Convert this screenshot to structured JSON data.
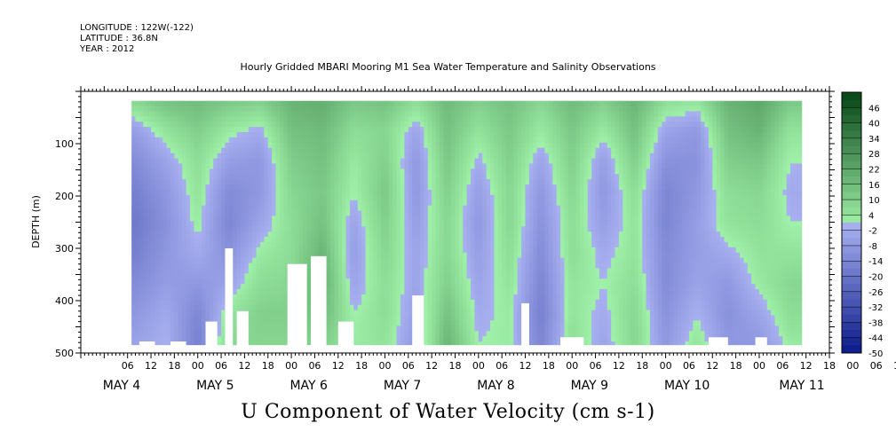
{
  "header": {
    "longitude": "LONGITUDE : 122W(-122)",
    "latitude": "LATITUDE : 36.8N",
    "year": "YEAR : 2012"
  },
  "title": "Hourly Gridded MBARI Mooring M1 Sea Water Temperature and Salinity Observations",
  "bottom_title": "U Component of Water Velocity (cm s-1)",
  "colors": {
    "negative_strong": "#0a1a8a",
    "negative_light": "#a8b0f0",
    "positive_light": "#9ff0a8",
    "positive_strong": "#0a4a1a"
  },
  "chart_data": {
    "type": "heatmap",
    "ylabel": "DEPTH (m)",
    "xlabel": "",
    "ylim": [
      500,
      0
    ],
    "y_ticks": [
      100,
      200,
      300,
      400,
      500
    ],
    "x_ticks": [
      "06",
      "12",
      "18",
      "00",
      "06",
      "12",
      "18",
      "00",
      "06",
      "12",
      "18",
      "00",
      "06",
      "12",
      "18",
      "00",
      "06",
      "12",
      "18",
      "00",
      "06",
      "12",
      "18",
      "00",
      "06",
      "12",
      "18",
      "00",
      "06",
      "12",
      "18",
      "00",
      "06",
      "12",
      "18",
      "00",
      "06"
    ],
    "months": [
      "MAY 4",
      "MAY 5",
      "MAY 6",
      "MAY 7",
      "MAY 8",
      "MAY 9",
      "MAY 10",
      "MAY 11"
    ],
    "colorbar_labels": [
      "46",
      "40",
      "34",
      "28",
      "22",
      "16",
      "10",
      "4",
      "-2",
      "-8",
      "-14",
      "-20",
      "-26",
      "-32",
      "-38",
      "-44",
      "-50"
    ],
    "colorbar_range": [
      -50,
      52
    ],
    "data_start_hour": 13,
    "data_end_hour": 185,
    "depth_range": [
      18,
      485
    ],
    "columns": [
      {
        "hour": 14,
        "values": [
          8,
          -6,
          -12,
          -16,
          -18,
          -16,
          -12,
          -8,
          -4
        ]
      },
      {
        "hour": 22,
        "values": [
          14,
          4,
          -4,
          -8,
          -10,
          -8,
          -6,
          -2,
          0
        ]
      },
      {
        "hour": 30,
        "values": [
          16,
          10,
          6,
          4,
          2,
          -2,
          -8,
          -14,
          -16
        ]
      },
      {
        "hour": 38,
        "values": [
          12,
          2,
          -6,
          -12,
          -14,
          -10,
          -4,
          4,
          8
        ]
      },
      {
        "hour": 46,
        "values": [
          10,
          -2,
          -8,
          -8,
          -4,
          2,
          6,
          10,
          8
        ]
      },
      {
        "hour": 54,
        "values": [
          18,
          14,
          10,
          8,
          6,
          6,
          8,
          10,
          8
        ]
      },
      {
        "hour": 62,
        "values": [
          20,
          16,
          14,
          12,
          14,
          18,
          20,
          16,
          10
        ]
      },
      {
        "hour": 70,
        "values": [
          12,
          6,
          2,
          0,
          -4,
          -6,
          -4,
          0,
          2
        ]
      },
      {
        "hour": 78,
        "values": [
          14,
          8,
          10,
          12,
          10,
          8,
          6,
          6,
          4
        ]
      },
      {
        "hour": 86,
        "values": [
          6,
          -4,
          -8,
          -8,
          -6,
          -4,
          -4,
          -6,
          -8
        ]
      },
      {
        "hour": 94,
        "values": [
          16,
          14,
          12,
          10,
          8,
          8,
          10,
          14,
          18
        ]
      },
      {
        "hour": 102,
        "values": [
          10,
          4,
          -2,
          -6,
          -8,
          -6,
          -4,
          -2,
          0
        ]
      },
      {
        "hour": 110,
        "values": [
          14,
          12,
          10,
          8,
          8,
          6,
          4,
          2,
          2
        ]
      },
      {
        "hour": 118,
        "values": [
          8,
          2,
          -4,
          -8,
          -10,
          -12,
          -14,
          -16,
          -14
        ]
      },
      {
        "hour": 126,
        "values": [
          16,
          12,
          10,
          8,
          6,
          6,
          4,
          4,
          6
        ]
      },
      {
        "hour": 134,
        "values": [
          10,
          2,
          -6,
          -8,
          -6,
          -2,
          0,
          -2,
          -4
        ]
      },
      {
        "hour": 142,
        "values": [
          18,
          14,
          10,
          6,
          4,
          4,
          6,
          8,
          8
        ]
      },
      {
        "hour": 150,
        "values": [
          6,
          -4,
          -10,
          -14,
          -14,
          -12,
          -12,
          -10,
          -8
        ]
      },
      {
        "hour": 158,
        "values": [
          4,
          -8,
          -10,
          -8,
          -6,
          -6,
          -4,
          0,
          4
        ]
      },
      {
        "hour": 166,
        "values": [
          18,
          14,
          10,
          6,
          4,
          -2,
          -8,
          -10,
          -8
        ]
      },
      {
        "hour": 174,
        "values": [
          22,
          18,
          12,
          8,
          6,
          4,
          2,
          -4,
          -8
        ]
      },
      {
        "hour": 182,
        "values": [
          12,
          4,
          0,
          -2,
          0,
          4,
          8,
          6,
          2
        ]
      }
    ]
  }
}
